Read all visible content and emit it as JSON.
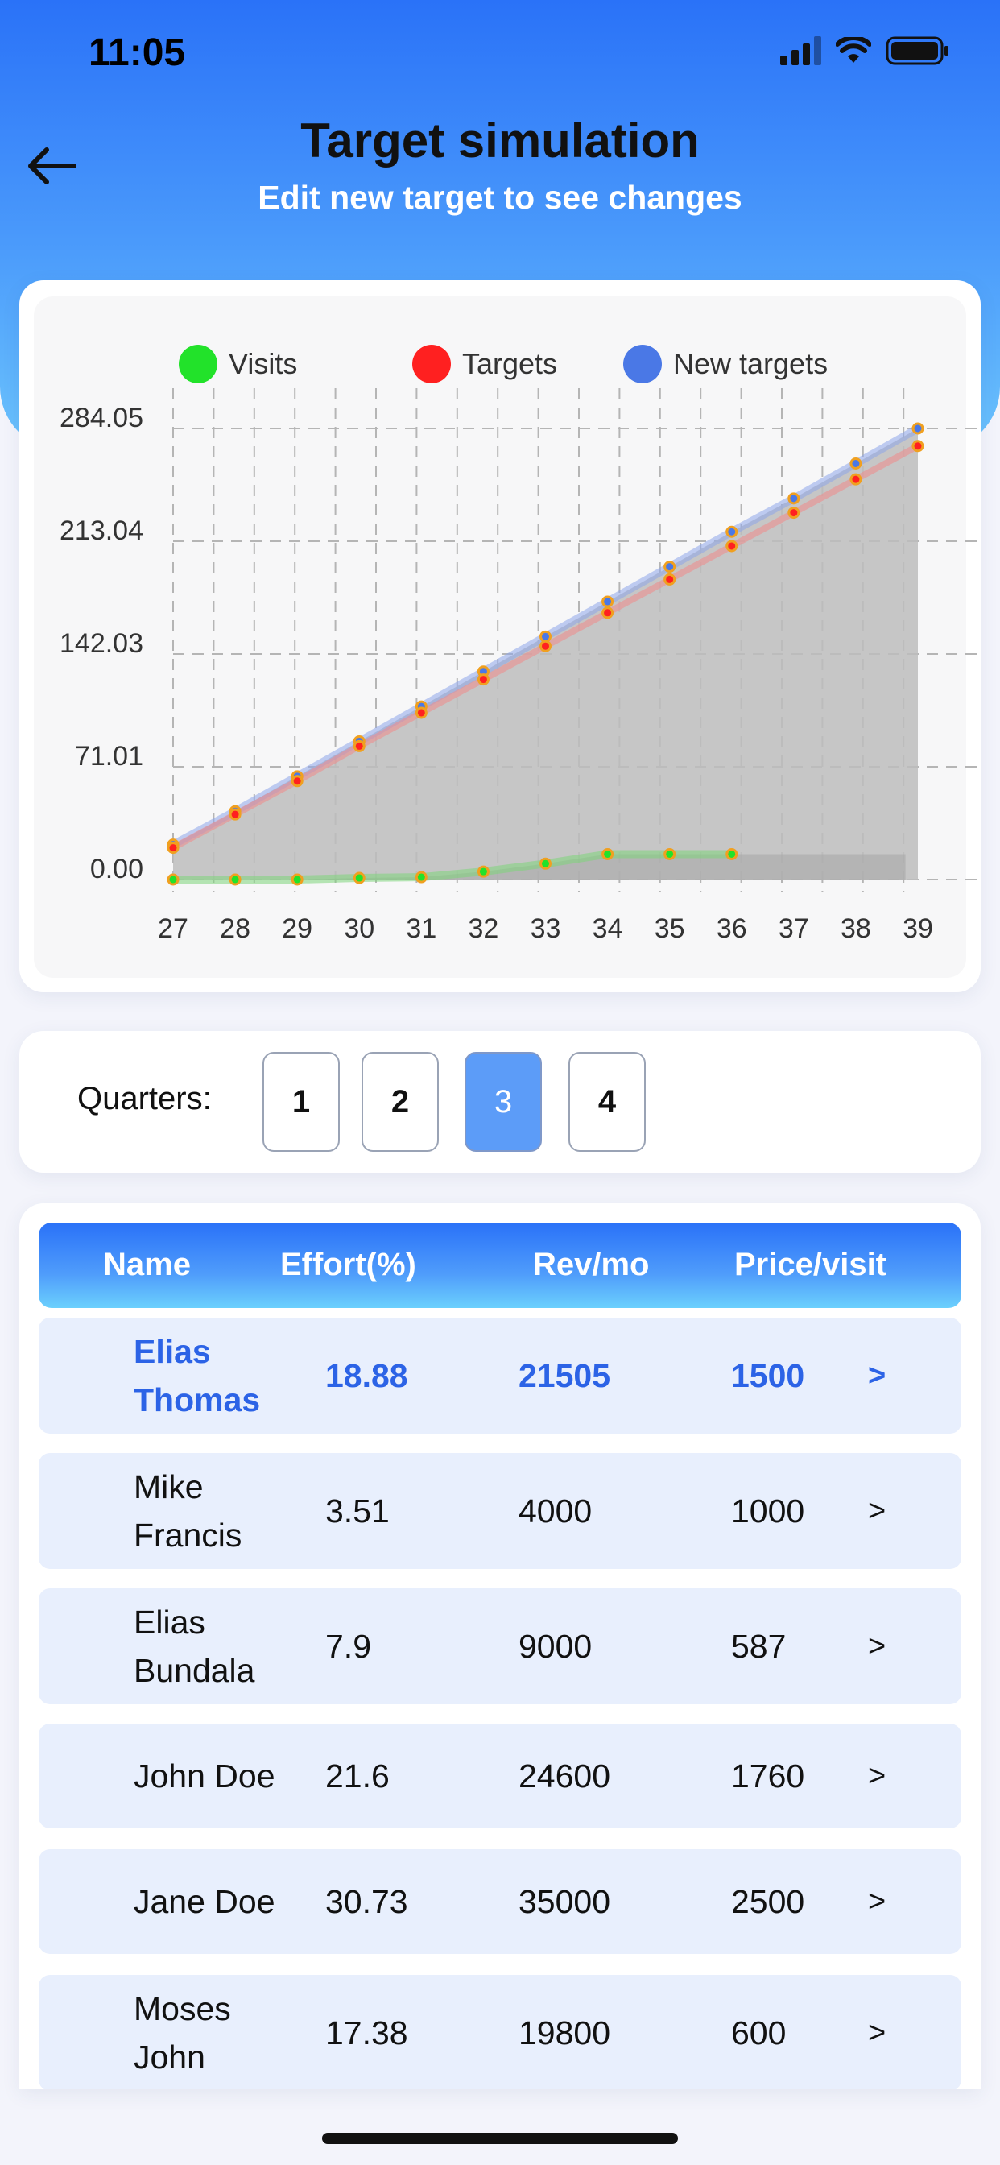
{
  "status_bar": {
    "time": "11:05"
  },
  "header": {
    "title": "Target simulation",
    "subtitle": "Edit new target to see changes"
  },
  "chart_data": {
    "type": "line",
    "legend": [
      {
        "name": "Visits",
        "color": "#22e22a"
      },
      {
        "name": "Targets",
        "color": "#ff2020"
      },
      {
        "name": "New targets",
        "color": "#4a78e6"
      }
    ],
    "x": [
      27,
      28,
      29,
      30,
      31,
      32,
      33,
      34,
      35,
      36,
      37,
      38,
      39
    ],
    "y_ticks": [
      "284.05",
      "213.04",
      "142.03",
      "71.01",
      "0.00"
    ],
    "ylim": [
      0,
      284.05
    ],
    "grid": true,
    "legend_position": "top",
    "series": [
      {
        "name": "Visits",
        "color": "#22e22a",
        "x": [
          27,
          28,
          29,
          30,
          31,
          32,
          33,
          34,
          35,
          36
        ],
        "values": [
          0,
          0,
          0,
          1,
          1.5,
          5,
          10,
          16,
          16,
          16
        ]
      },
      {
        "name": "Targets",
        "color": "#ff2020",
        "x": [
          27,
          28,
          29,
          30,
          31,
          32,
          33,
          34,
          35,
          36,
          37,
          38,
          39
        ],
        "values": [
          20,
          41,
          62,
          84,
          105,
          126,
          147,
          168,
          189,
          210,
          231,
          252,
          273
        ]
      },
      {
        "name": "New targets",
        "color": "#4a78e6",
        "x": [
          27,
          28,
          29,
          30,
          31,
          32,
          33,
          34,
          35,
          36,
          37,
          38,
          39
        ],
        "values": [
          22,
          43,
          65,
          87,
          109,
          131,
          153,
          175,
          197,
          219,
          240,
          262,
          284.05
        ]
      }
    ]
  },
  "quarters": {
    "label": "Quarters:",
    "options": [
      "1",
      "2",
      "3",
      "4"
    ],
    "selected": "3"
  },
  "table": {
    "headers": {
      "name": "Name",
      "effort": "Effort(%)",
      "rev": "Rev/mo",
      "price": "Price/visit"
    },
    "rows": [
      {
        "name": "Elias Thomas",
        "effort": "18.88",
        "rev": "21505",
        "price": "1500",
        "highlight": true
      },
      {
        "name": "Mike Francis",
        "effort": "3.51",
        "rev": "4000",
        "price": "1000"
      },
      {
        "name": "Elias Bundala",
        "effort": "7.9",
        "rev": "9000",
        "price": "587"
      },
      {
        "name": "John Doe",
        "effort": "21.6",
        "rev": "24600",
        "price": "1760"
      },
      {
        "name": "Jane Doe",
        "effort": "30.73",
        "rev": "35000",
        "price": "2500"
      },
      {
        "name": "Moses John",
        "effort": "17.38",
        "rev": "19800",
        "price": "600"
      }
    ],
    "chevron": ">"
  }
}
